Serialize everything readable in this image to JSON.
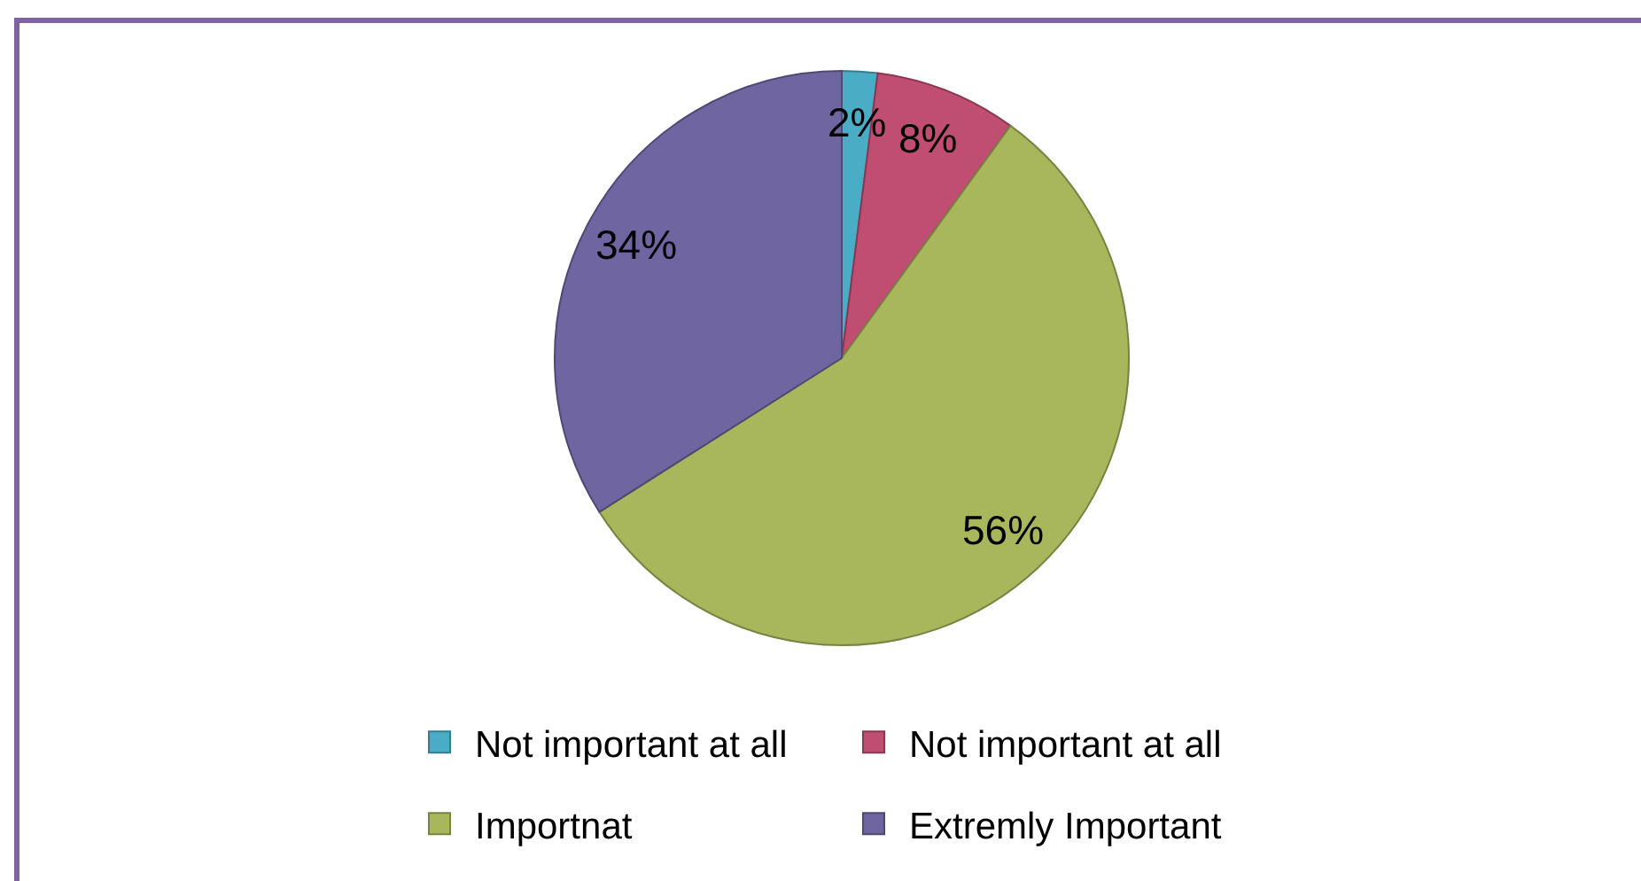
{
  "chart_data": {
    "type": "pie",
    "categories": [
      "Not important at all",
      "Not important at all",
      "Importnat",
      "Extremly Important"
    ],
    "values": [
      2,
      8,
      56,
      34
    ],
    "colors": [
      "#4bacc6",
      "#c04e72",
      "#a8b75c",
      "#6f65a1"
    ],
    "value_labels": [
      "2%",
      "8%",
      "56%",
      "34%"
    ],
    "legend": "bottom"
  }
}
